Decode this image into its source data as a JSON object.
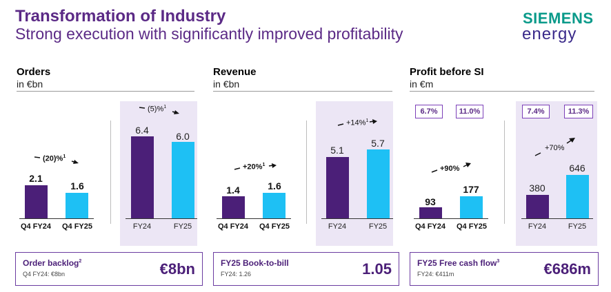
{
  "header": {
    "title": "Transformation of Industry",
    "subtitle": "Strong execution with significantly improved profitability",
    "logo_line1": "SIEMENS",
    "logo_line2": "energy"
  },
  "sections": {
    "orders": {
      "title": "Orders",
      "unit": "in €bn",
      "quarter": {
        "change": "(20)%",
        "change_sup": "1",
        "cats": [
          "Q4 FY24",
          "Q4 FY25"
        ],
        "values": [
          "2.1",
          "1.6"
        ]
      },
      "year": {
        "change": "(5)%",
        "change_sup": "1",
        "cats": [
          "FY24",
          "FY25"
        ],
        "values": [
          "6.4",
          "6.0"
        ]
      },
      "kpi": {
        "label": "Order backlog",
        "label_sup": "2",
        "sub": "Q4 FY24: €8bn",
        "value": "€8bn"
      }
    },
    "revenue": {
      "title": "Revenue",
      "unit": "in €bn",
      "quarter": {
        "change": "+20%",
        "change_sup": "1",
        "cats": [
          "Q4 FY24",
          "Q4 FY25"
        ],
        "values": [
          "1.4",
          "1.6"
        ]
      },
      "year": {
        "change": "+14%",
        "change_sup": "1",
        "cats": [
          "FY24",
          "FY25"
        ],
        "values": [
          "5.1",
          "5.7"
        ]
      },
      "kpi": {
        "label": "FY25 Book-to-bill",
        "sub": "FY24: 1.26",
        "value": "1.05"
      }
    },
    "profit": {
      "title": "Profit before SI",
      "unit": "in €m",
      "quarter": {
        "change": "+90%",
        "cats": [
          "Q4 FY24",
          "Q4 FY25"
        ],
        "values": [
          "93",
          "177"
        ],
        "margins": [
          "6.7%",
          "11.0%"
        ]
      },
      "year": {
        "change": "+70%",
        "cats": [
          "FY24",
          "FY25"
        ],
        "values": [
          "380",
          "646"
        ],
        "margins": [
          "7.4%",
          "11.3%"
        ]
      },
      "kpi": {
        "label": "FY25 Free cash flow",
        "label_sup": "3",
        "sub": "FY24: €411m",
        "value": "€686m"
      }
    }
  },
  "colors": {
    "dark_bar": "#4b1f78",
    "light_bar": "#1ec0f4",
    "year_bg": "#ece6f5",
    "accent": "#5b2a86"
  }
}
